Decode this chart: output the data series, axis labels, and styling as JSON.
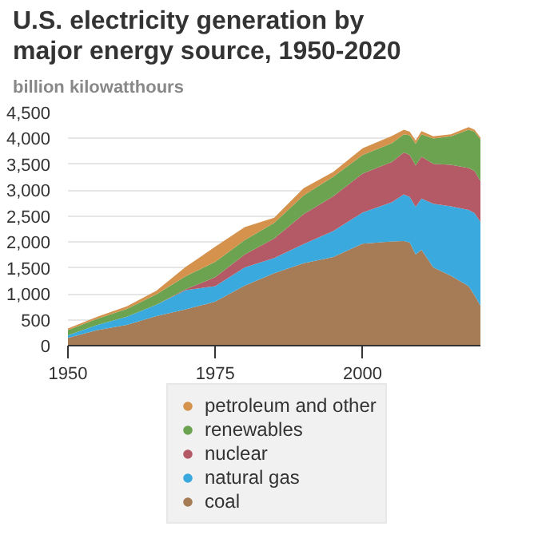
{
  "chart_data": {
    "type": "area",
    "stacked": true,
    "title": "U.S. electricity generation by major energy source, 1950-2020",
    "subtitle": "billion kilowatthours",
    "x": [
      1950,
      1955,
      1960,
      1965,
      1970,
      1975,
      1980,
      1985,
      1990,
      1995,
      2000,
      2005,
      2007,
      2008,
      2009,
      2010,
      2012,
      2015,
      2018,
      2019,
      2020
    ],
    "series": [
      {
        "name": "coal",
        "color": "#a57c55",
        "values": [
          150,
          300,
          400,
          570,
          700,
          850,
          1160,
          1400,
          1590,
          1710,
          1970,
          2010,
          2020,
          1990,
          1760,
          1850,
          1510,
          1350,
          1150,
          970,
          770
        ]
      },
      {
        "name": "natural gas",
        "color": "#3aa9dd",
        "values": [
          50,
          100,
          160,
          220,
          370,
          300,
          350,
          290,
          370,
          500,
          600,
          760,
          900,
          880,
          920,
          990,
          1230,
          1340,
          1470,
          1590,
          1620
        ]
      },
      {
        "name": "nuclear",
        "color": "#b35a66",
        "values": [
          0,
          0,
          0,
          0,
          20,
          170,
          250,
          380,
          580,
          670,
          750,
          780,
          810,
          810,
          800,
          810,
          770,
          800,
          810,
          810,
          790
        ]
      },
      {
        "name": "renewables",
        "color": "#6ba350",
        "values": [
          100,
          120,
          150,
          200,
          250,
          300,
          280,
          300,
          360,
          380,
          360,
          360,
          350,
          380,
          420,
          430,
          490,
          550,
          740,
          760,
          800
        ]
      },
      {
        "name": "petroleum and other",
        "color": "#d4924c",
        "values": [
          30,
          40,
          50,
          70,
          180,
          290,
          250,
          100,
          140,
          90,
          130,
          140,
          90,
          70,
          60,
          60,
          40,
          40,
          50,
          40,
          40
        ]
      }
    ],
    "xlim": [
      1950,
      2020
    ],
    "xticks": [
      1950,
      1975,
      2000
    ],
    "ylim": [
      0,
      4500
    ],
    "yticks": [
      {
        "value": 0,
        "label": "0"
      },
      {
        "value": 500,
        "label": "500"
      },
      {
        "value": 1000,
        "label": "1,000"
      },
      {
        "value": 1500,
        "label": "1,500"
      },
      {
        "value": 2000,
        "label": "2,000"
      },
      {
        "value": 2500,
        "label": "2,500"
      },
      {
        "value": 3000,
        "label": "3,000"
      },
      {
        "value": 3500,
        "label": "3,500"
      },
      {
        "value": 4000,
        "label": "4,000"
      },
      {
        "value": 4500,
        "label": "4,500"
      }
    ],
    "grid": "y",
    "legend": "bottom"
  }
}
